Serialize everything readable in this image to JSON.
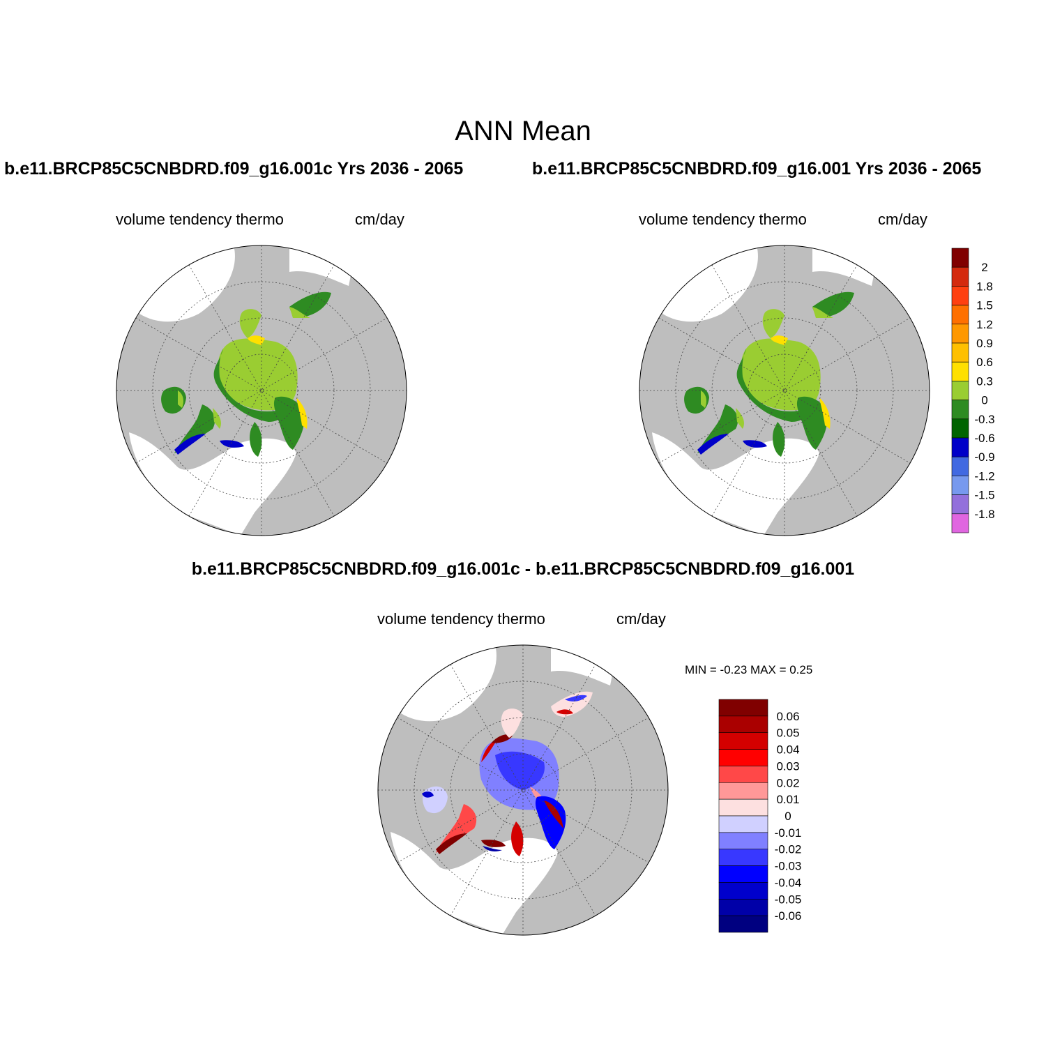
{
  "figure": {
    "title": "ANN Mean",
    "case1_title": "b.e11.BRCP85C5CNBDRD.f09_g16.001c  Yrs 2036 - 2065",
    "case2_title": "b.e11.BRCP85C5CNBDRD.f09_g16.001  Yrs 2036 - 2065",
    "diff_title": "b.e11.BRCP85C5CNBDRD.f09_g16.001c - b.e11.BRCP85C5CNBDRD.f09_g16.001"
  },
  "panels": {
    "case1": {
      "variable": "volume tendency thermo",
      "units": "cm/day"
    },
    "case2": {
      "variable": "volume tendency thermo",
      "units": "cm/day"
    },
    "diff": {
      "variable": "volume tendency thermo",
      "units": "cm/day",
      "minmax": "MIN =  -0.23 MAX =   0.25"
    }
  },
  "colorbars": {
    "abs": {
      "labels": [
        "2",
        "1.8",
        "1.5",
        "1.2",
        "0.9",
        "0.6",
        "0.3",
        "0",
        "-0.3",
        "-0.6",
        "-0.9",
        "-1.2",
        "-1.5",
        "-1.8"
      ],
      "colors": [
        "#800000",
        "#d42a0e",
        "#ff4010",
        "#ff7000",
        "#ff9800",
        "#ffc000",
        "#ffe000",
        "#9acd32",
        "#2e8b22",
        "#006400",
        "#0000c8",
        "#4169e1",
        "#7799ee",
        "#9370db",
        "#e066e0"
      ]
    },
    "diff": {
      "labels": [
        "0.06",
        "0.05",
        "0.04",
        "0.03",
        "0.02",
        "0.01",
        "0",
        "-0.01",
        "-0.02",
        "-0.03",
        "-0.04",
        "-0.05",
        "-0.06"
      ],
      "colors": [
        "#800000",
        "#aa0000",
        "#d40000",
        "#ff0000",
        "#ff4848",
        "#ff9898",
        "#fde0e0",
        "#d0d0ff",
        "#8080ff",
        "#3838ff",
        "#0000ff",
        "#0000cc",
        "#0000a8",
        "#000080"
      ]
    }
  },
  "map_colors": {
    "land": "#bebebe",
    "ocean": "#ffffff"
  }
}
